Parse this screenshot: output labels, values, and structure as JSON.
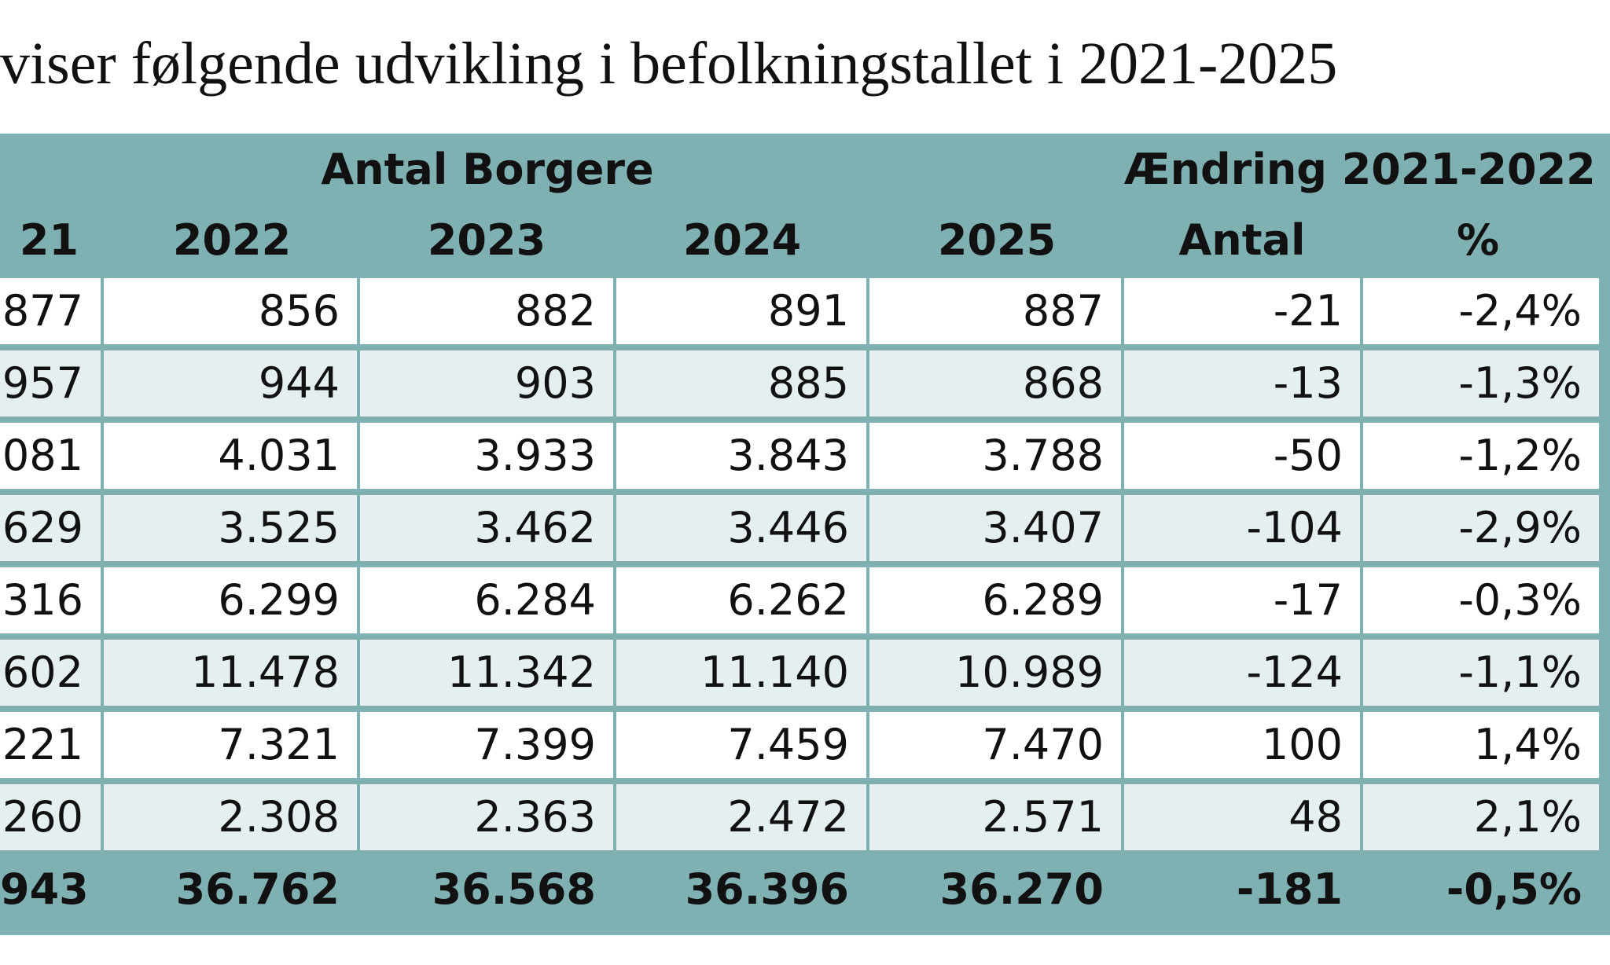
{
  "heading": "viser følgende udvikling i befolkningstallet i 2021-2025",
  "table": {
    "group_headers": {
      "antal_borgere": "Antal Borgere",
      "aendring": "Ændring 2021-2022"
    },
    "column_headers": [
      "21",
      "2022",
      "2023",
      "2024",
      "2025",
      "Antal",
      "%"
    ],
    "rows": [
      [
        "877",
        "856",
        "882",
        "891",
        "887",
        "-21",
        "-2,4%"
      ],
      [
        "957",
        "944",
        "903",
        "885",
        "868",
        "-13",
        "-1,3%"
      ],
      [
        "081",
        "4.031",
        "3.933",
        "3.843",
        "3.788",
        "-50",
        "-1,2%"
      ],
      [
        "629",
        "3.525",
        "3.462",
        "3.446",
        "3.407",
        "-104",
        "-2,9%"
      ],
      [
        "316",
        "6.299",
        "6.284",
        "6.262",
        "6.289",
        "-17",
        "-0,3%"
      ],
      [
        "602",
        "11.478",
        "11.342",
        "11.140",
        "10.989",
        "-124",
        "-1,1%"
      ],
      [
        "221",
        "7.321",
        "7.399",
        "7.459",
        "7.470",
        "100",
        "1,4%"
      ],
      [
        "260",
        "2.308",
        "2.363",
        "2.472",
        "2.571",
        "48",
        "2,1%"
      ]
    ],
    "total": [
      "943",
      "36.762",
      "36.568",
      "36.396",
      "36.270",
      "-181",
      "-0,5%"
    ]
  },
  "colors": {
    "header_bg": "#7fb1b2",
    "row_alt_bg": "#e6eff0",
    "row_bg": "#ffffff"
  }
}
